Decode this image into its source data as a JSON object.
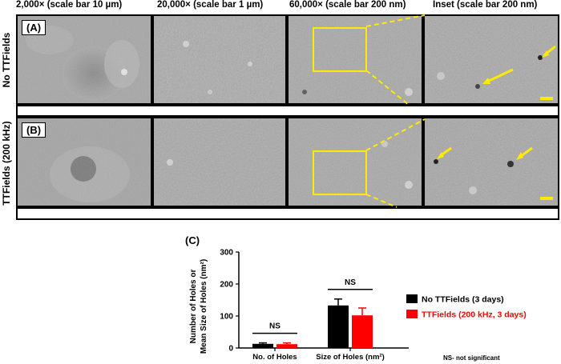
{
  "column_headers": [
    "2,000× (scale bar 10 µm)",
    "20,000× (scale bar 1 µm)",
    "60,000× (scale bar 200 nm)",
    "Inset (scale bar 200 nm)"
  ],
  "rows": [
    {
      "panel_label": "(A)",
      "row_label": "No TTFields"
    },
    {
      "panel_label": "(B)",
      "row_label": "TTFields (200 kHz)"
    }
  ],
  "chart_panel_label": "(C)",
  "footnote": "NS- not significant",
  "colors": {
    "highlight": "#ffea00",
    "series_no": "#000000",
    "series_tt": "#ff0000"
  },
  "chart_data": {
    "type": "bar",
    "categories": [
      "No. of Holes",
      "Size of Holes (nm²)"
    ],
    "series": [
      {
        "name": "No TTFields (3 days)",
        "values": [
          13,
          133
        ],
        "errors": [
          3,
          20
        ]
      },
      {
        "name": "TTFields (200 kHz, 3 days)",
        "values": [
          12,
          102
        ],
        "errors": [
          4,
          23
        ]
      }
    ],
    "ylabel_line1": "Number of Holes or",
    "ylabel_line2": "Mean Size of Holes (nm²)",
    "ylim": [
      0,
      300
    ],
    "yticks": [
      "0",
      "100",
      "200",
      "300"
    ],
    "annotations": [
      "NS",
      "NS"
    ],
    "legend_placement": "right"
  }
}
